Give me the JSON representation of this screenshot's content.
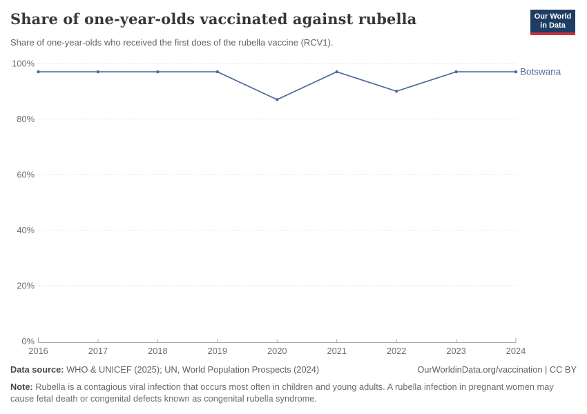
{
  "header": {
    "title": "Share of one-year-olds vaccinated against rubella",
    "subtitle": "Share of one-year-olds who received the first does of the rubella vaccine (RCV1).",
    "logo": {
      "line1": "Our World",
      "line2": "in Data"
    }
  },
  "chart_data": {
    "type": "line",
    "title": "Share of one-year-olds vaccinated against rubella",
    "x": [
      2016,
      2017,
      2018,
      2019,
      2020,
      2021,
      2022,
      2023,
      2024
    ],
    "series": [
      {
        "name": "Botswana",
        "values": [
          97,
          97,
          97,
          97,
          87,
          97,
          90,
          97,
          97
        ],
        "color": "#4C6A9C"
      }
    ],
    "xlabel": "",
    "ylabel": "",
    "ylim": [
      0,
      100
    ],
    "y_ticks": [
      0,
      20,
      40,
      60,
      80,
      100
    ],
    "y_tick_suffix": "%",
    "grid": "horizontal-dashed",
    "legend": "end-of-line-label",
    "end_label": "Botswana",
    "markers": true
  },
  "footer": {
    "datasource_label": "Data source:",
    "datasource_text": " WHO & UNICEF (2025); UN, World Population Prospects (2024)",
    "link_text": "OurWorldinData.org/vaccination | CC BY",
    "note_label": "Note:",
    "note_text": " Rubella is a contagious viral infection that occurs most often in children and young adults. A rubella infection in pregnant women may cause fetal death or congenital defects known as congenital rubella syndrome."
  },
  "colors": {
    "line": "#4C6A9C",
    "logo_bg": "#1d3d63",
    "logo_underline": "#cf303e",
    "grid": "#dddddd",
    "axis": "#a8a8a8",
    "tick_label": "#6e6e6e",
    "title": "#383636",
    "subtitle": "#646464"
  }
}
